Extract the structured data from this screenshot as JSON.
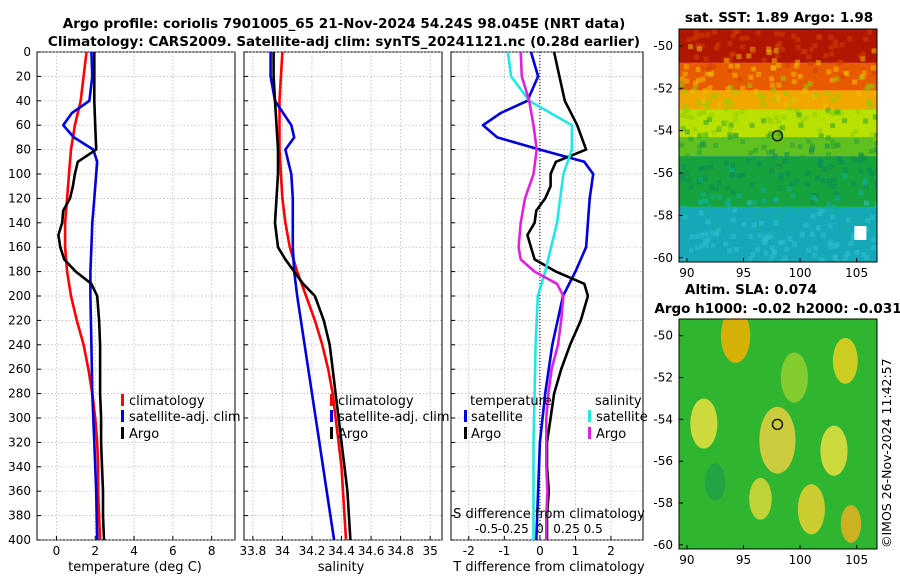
{
  "titles": {
    "line1": "Argo profile: coriolis 7901005_65 21-Nov-2024 54.24S 98.045E (NRT data)",
    "line2": "Climatology: CARS2009. Satellite-adj clim: synTS_20241121.nc (0.28d earlier)",
    "sst": "sat. SST: 1.89 Argo: 1.98",
    "sla1": "Altim. SLA: 0.074",
    "sla2": "Argo h1000: -0.02 h2000: -0.031"
  },
  "footer": "©IMOS 26-Nov-2024 11:42:57",
  "colors": {
    "climatology": "#ff0000",
    "satellite": "#0000dd",
    "argo": "#000000",
    "sal_sat": "#22e5e5",
    "sal_arg": "#dd22dd"
  },
  "depth_ticks": [
    "0",
    "20",
    "40",
    "60",
    "80",
    "100",
    "120",
    "140",
    "160",
    "180",
    "200",
    "220",
    "240",
    "260",
    "280",
    "300",
    "320",
    "340",
    "360",
    "380",
    "400"
  ],
  "chart_data": [
    {
      "type": "line",
      "id": "temperature",
      "xlabel": "temperature (deg C)",
      "ylabel": "",
      "xlim": [
        -1,
        9.2
      ],
      "ylim": [
        400,
        0
      ],
      "xticks": [
        "0",
        "2",
        "4",
        "6",
        "8"
      ],
      "legend": [
        "climatology",
        "satellite-adj. clim",
        "Argo"
      ],
      "series": [
        {
          "name": "climatology",
          "depth": [
            0,
            20,
            40,
            60,
            80,
            100,
            120,
            140,
            160,
            180,
            200,
            220,
            240,
            260,
            280,
            300,
            320,
            340,
            360,
            380,
            400
          ],
          "values": [
            1.55,
            1.4,
            1.25,
            0.95,
            0.75,
            0.65,
            0.55,
            0.45,
            0.45,
            0.55,
            0.75,
            1.05,
            1.4,
            1.65,
            1.85,
            2.0,
            2.1,
            2.15,
            2.15,
            2.2,
            2.25
          ]
        },
        {
          "name": "satellite-adj. clim",
          "depth": [
            0,
            20,
            40,
            50,
            60,
            70,
            80,
            90,
            100,
            120,
            140,
            160,
            180,
            200,
            240,
            280,
            320,
            360,
            400
          ],
          "values": [
            1.8,
            1.85,
            1.7,
            0.8,
            0.35,
            0.9,
            1.9,
            2.1,
            2.05,
            1.95,
            1.85,
            1.8,
            1.75,
            1.75,
            1.8,
            1.85,
            1.95,
            2.05,
            2.1
          ]
        },
        {
          "name": "Argo",
          "depth": [
            0,
            20,
            40,
            60,
            80,
            90,
            100,
            110,
            120,
            130,
            140,
            150,
            160,
            170,
            180,
            190,
            200,
            220,
            240,
            260,
            280,
            300,
            320,
            340,
            360,
            380,
            400
          ],
          "values": [
            1.95,
            1.95,
            1.95,
            2.0,
            2.05,
            1.1,
            0.95,
            0.85,
            0.7,
            0.35,
            0.3,
            0.1,
            0.2,
            0.4,
            1.0,
            1.8,
            2.1,
            2.2,
            2.25,
            2.25,
            2.25,
            2.3,
            2.3,
            2.35,
            2.4,
            2.4,
            2.45
          ]
        }
      ]
    },
    {
      "type": "line",
      "id": "salinity",
      "xlabel": "salinity",
      "ylabel": "",
      "xlim": [
        33.74,
        35.08
      ],
      "ylim": [
        400,
        0
      ],
      "xticks": [
        "33.8",
        "34",
        "34.2",
        "34.4",
        "34.6",
        "34.8",
        "35"
      ],
      "legend": [
        "climatology",
        "satellite-adj. clim",
        "Argo"
      ],
      "series": [
        {
          "name": "climatology",
          "depth": [
            0,
            20,
            40,
            60,
            80,
            100,
            120,
            140,
            160,
            180,
            200,
            220,
            240,
            260,
            280,
            300,
            320,
            340,
            360,
            380,
            400
          ],
          "values": [
            34.0,
            33.99,
            33.98,
            33.98,
            33.98,
            33.99,
            34.0,
            34.02,
            34.05,
            34.1,
            34.16,
            34.22,
            34.27,
            34.31,
            34.34,
            34.36,
            34.38,
            34.4,
            34.41,
            34.42,
            34.43
          ]
        },
        {
          "name": "satellite-adj. clim",
          "depth": [
            0,
            20,
            40,
            60,
            70,
            80,
            90,
            100,
            120,
            140,
            160,
            180,
            200,
            240,
            280,
            320,
            360,
            400
          ],
          "values": [
            33.92,
            33.92,
            33.95,
            34.06,
            34.08,
            34.02,
            34.04,
            34.06,
            34.07,
            34.07,
            34.07,
            34.08,
            34.1,
            34.15,
            34.2,
            34.25,
            34.3,
            34.35
          ]
        },
        {
          "name": "Argo",
          "depth": [
            0,
            20,
            40,
            60,
            80,
            100,
            120,
            140,
            160,
            170,
            180,
            190,
            200,
            220,
            240,
            260,
            280,
            300,
            320,
            340,
            360,
            380,
            400
          ],
          "values": [
            33.94,
            33.94,
            33.95,
            33.96,
            33.97,
            33.97,
            33.96,
            33.95,
            33.97,
            34.02,
            34.08,
            34.14,
            34.22,
            34.28,
            34.32,
            34.34,
            34.36,
            34.38,
            34.4,
            34.42,
            34.44,
            34.45,
            34.46
          ]
        }
      ]
    },
    {
      "type": "line",
      "id": "differences",
      "xlabel": "T difference from climatology",
      "xlabel_top": "S difference from climatology",
      "ylabel": "",
      "xlim": [
        -2.5,
        2.9
      ],
      "ylim": [
        400,
        0
      ],
      "xticks": [
        "-2",
        "-1",
        "0",
        "1",
        "2"
      ],
      "sticks": [
        "-0.5",
        "-0.25",
        "0",
        "0.25",
        "0.5"
      ],
      "legend_groups": {
        "temperature": "temperature",
        "salinity": "salinity"
      },
      "legend": [
        "satellite",
        "Argo",
        "satellite",
        "Argo"
      ],
      "series": [
        {
          "name": "temperature satellite",
          "depth": [
            0,
            20,
            40,
            50,
            60,
            70,
            80,
            90,
            100,
            120,
            140,
            160,
            180,
            200,
            240,
            280,
            320,
            360,
            400
          ],
          "values": [
            -0.25,
            -0.05,
            -0.35,
            -1.1,
            -1.6,
            -1.2,
            0.0,
            1.25,
            1.5,
            1.4,
            1.35,
            1.3,
            1.0,
            0.65,
            0.35,
            0.15,
            0.0,
            -0.05,
            -0.1
          ]
        },
        {
          "name": "temperature Argo",
          "depth": [
            0,
            20,
            40,
            60,
            80,
            90,
            100,
            110,
            120,
            130,
            140,
            150,
            160,
            170,
            180,
            190,
            200,
            220,
            240,
            260,
            280,
            300,
            320,
            340,
            360,
            380,
            400
          ],
          "values": [
            0.4,
            0.55,
            0.7,
            1.05,
            1.3,
            0.45,
            0.3,
            0.3,
            0.15,
            -0.1,
            -0.15,
            -0.35,
            -0.25,
            -0.15,
            0.45,
            1.25,
            1.35,
            1.15,
            0.85,
            0.6,
            0.4,
            0.3,
            0.2,
            0.2,
            0.25,
            0.2,
            0.2
          ]
        },
        {
          "name": "salinity satellite",
          "depth": [
            0,
            20,
            40,
            60,
            80,
            100,
            140,
            180,
            200,
            240,
            280,
            320,
            360,
            400
          ],
          "values": [
            -0.3,
            -0.27,
            -0.1,
            0.3,
            0.3,
            0.22,
            0.16,
            0.05,
            -0.02,
            -0.04,
            -0.05,
            -0.06,
            -0.06,
            -0.06
          ]
        },
        {
          "name": "salinity Argo",
          "depth": [
            0,
            20,
            40,
            60,
            80,
            100,
            120,
            140,
            160,
            170,
            180,
            190,
            200,
            220,
            240,
            260,
            280,
            300,
            320,
            340,
            360,
            380,
            400
          ],
          "values": [
            -0.18,
            -0.17,
            -0.1,
            -0.06,
            -0.03,
            -0.06,
            -0.14,
            -0.18,
            -0.2,
            -0.18,
            -0.05,
            0.16,
            0.22,
            0.2,
            0.17,
            0.11,
            0.08,
            0.06,
            0.06,
            0.06,
            0.07,
            0.06,
            0.06
          ]
        }
      ]
    },
    {
      "type": "heatmap",
      "id": "sst_map",
      "title": "sat. SST: 1.89 Argo: 1.98",
      "xlim": [
        89.3,
        106.8
      ],
      "ylim": [
        -60.2,
        -49.2
      ],
      "xticks": [
        "90",
        "95",
        "100",
        "105"
      ],
      "yticks": [
        "-50",
        "-52",
        "-54",
        "-56",
        "-58",
        "-60"
      ],
      "marker": {
        "lon": 98.0,
        "lat": -54.24
      },
      "bands": [
        {
          "lat_from": -49.2,
          "lat_to": -50.8,
          "color": "#b01500"
        },
        {
          "lat_from": -50.8,
          "lat_to": -52.1,
          "color": "#e85a00"
        },
        {
          "lat_from": -52.1,
          "lat_to": -53.0,
          "color": "#f0a800"
        },
        {
          "lat_from": -53.0,
          "lat_to": -54.3,
          "color": "#b8e000"
        },
        {
          "lat_from": -54.3,
          "lat_to": -55.2,
          "color": "#60c020"
        },
        {
          "lat_from": -55.2,
          "lat_to": -57.6,
          "color": "#16a23c"
        },
        {
          "lat_from": -57.6,
          "lat_to": -60.2,
          "color": "#14a8b8"
        }
      ]
    },
    {
      "type": "heatmap",
      "id": "sla_map",
      "title": "Altim. SLA: 0.074",
      "xlim": [
        89.3,
        106.8
      ],
      "ylim": [
        -60.2,
        -49.2
      ],
      "xticks": [
        "90",
        "95",
        "100",
        "105"
      ],
      "yticks": [
        "-50",
        "-52",
        "-54",
        "-56",
        "-58",
        "-60"
      ],
      "marker": {
        "lon": 98.0,
        "lat": -54.24
      },
      "base_color": "#2fb530",
      "blobs": [
        {
          "lon": 94.3,
          "lat": -50.0,
          "r": 1.3,
          "color": "#f2b000"
        },
        {
          "lon": 104.0,
          "lat": -51.2,
          "r": 1.1,
          "color": "#e8d020"
        },
        {
          "lon": 91.5,
          "lat": -54.2,
          "r": 1.2,
          "color": "#e8e040"
        },
        {
          "lon": 98.0,
          "lat": -55.0,
          "r": 1.6,
          "color": "#e6d040"
        },
        {
          "lon": 103.0,
          "lat": -55.5,
          "r": 1.2,
          "color": "#e8e040"
        },
        {
          "lon": 96.5,
          "lat": -57.8,
          "r": 1.0,
          "color": "#d8d83a"
        },
        {
          "lon": 101.0,
          "lat": -58.3,
          "r": 1.2,
          "color": "#e6d030"
        },
        {
          "lon": 104.5,
          "lat": -59.0,
          "r": 0.9,
          "color": "#e8b020"
        },
        {
          "lon": 92.5,
          "lat": -57.0,
          "r": 0.9,
          "color": "#20a048"
        },
        {
          "lon": 99.5,
          "lat": -52.0,
          "r": 1.2,
          "color": "#90d030"
        }
      ]
    }
  ]
}
